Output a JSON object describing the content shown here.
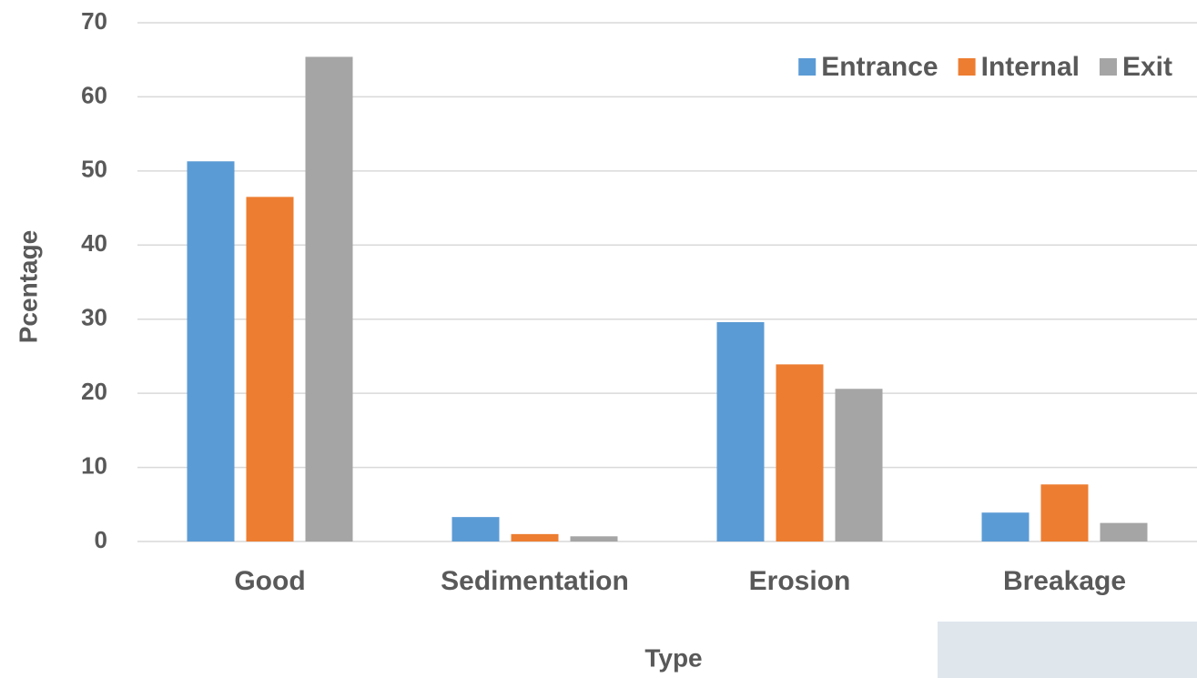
{
  "chart_data": {
    "type": "bar",
    "x_label": "Type",
    "y_label": "Pcentage",
    "categories": [
      "Good",
      "Sedimentation",
      "Erosion",
      "Breakage"
    ],
    "series": [
      {
        "name": "Entrance",
        "color": "#5b9bd5",
        "values": [
          51.3,
          3.3,
          29.6,
          3.9
        ]
      },
      {
        "name": "Internal",
        "color": "#ed7d31",
        "values": [
          46.5,
          1.0,
          23.9,
          7.7
        ]
      },
      {
        "name": "Exit",
        "color": "#a5a5a5",
        "values": [
          65.4,
          0.7,
          20.6,
          2.5
        ]
      }
    ],
    "ylim": [
      0,
      70
    ],
    "yticks": [
      0,
      10,
      20,
      30,
      40,
      50,
      60,
      70
    ],
    "grid": true,
    "legend": "top-right"
  }
}
